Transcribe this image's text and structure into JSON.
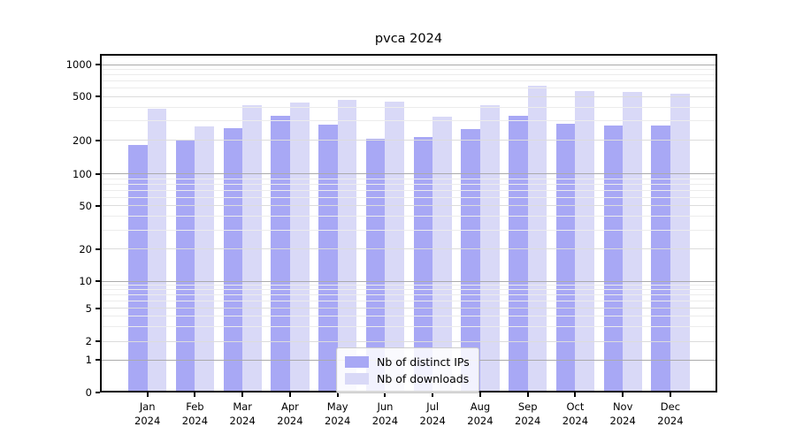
{
  "title": "pvca 2024",
  "chart_data": {
    "type": "bar",
    "title": "pvca 2024",
    "categories": [
      "Jan",
      "Feb",
      "Mar",
      "Apr",
      "May",
      "Jun",
      "Jul",
      "Aug",
      "Sep",
      "Oct",
      "Nov",
      "Dec"
    ],
    "year": "2024",
    "series": [
      {
        "name": "Nb of distinct IPs",
        "color": "#a8a8f5",
        "values": [
          182,
          198,
          261,
          336,
          279,
          206,
          214,
          254,
          336,
          285,
          271,
          271
        ]
      },
      {
        "name": "Nb of downloads",
        "color": "#d9d9f7",
        "values": [
          390,
          270,
          415,
          445,
          464,
          450,
          326,
          419,
          630,
          561,
          554,
          530
        ]
      }
    ],
    "yticks": [
      0,
      1,
      2,
      5,
      10,
      20,
      50,
      100,
      200,
      500,
      1000
    ],
    "minor_ticks": [
      3,
      4,
      6,
      7,
      8,
      9,
      30,
      40,
      60,
      70,
      80,
      90,
      300,
      400,
      600,
      700,
      800,
      900
    ],
    "yscale": "symlog",
    "ylim": [
      0,
      1270
    ],
    "xlabel": "",
    "ylabel": "",
    "grid": true,
    "legend_position": "lower center"
  },
  "colors": {
    "grid_major": "#ababab",
    "grid_mid": "#dcdcdc",
    "grid_minor": "#ececec",
    "spine": "#000000"
  }
}
